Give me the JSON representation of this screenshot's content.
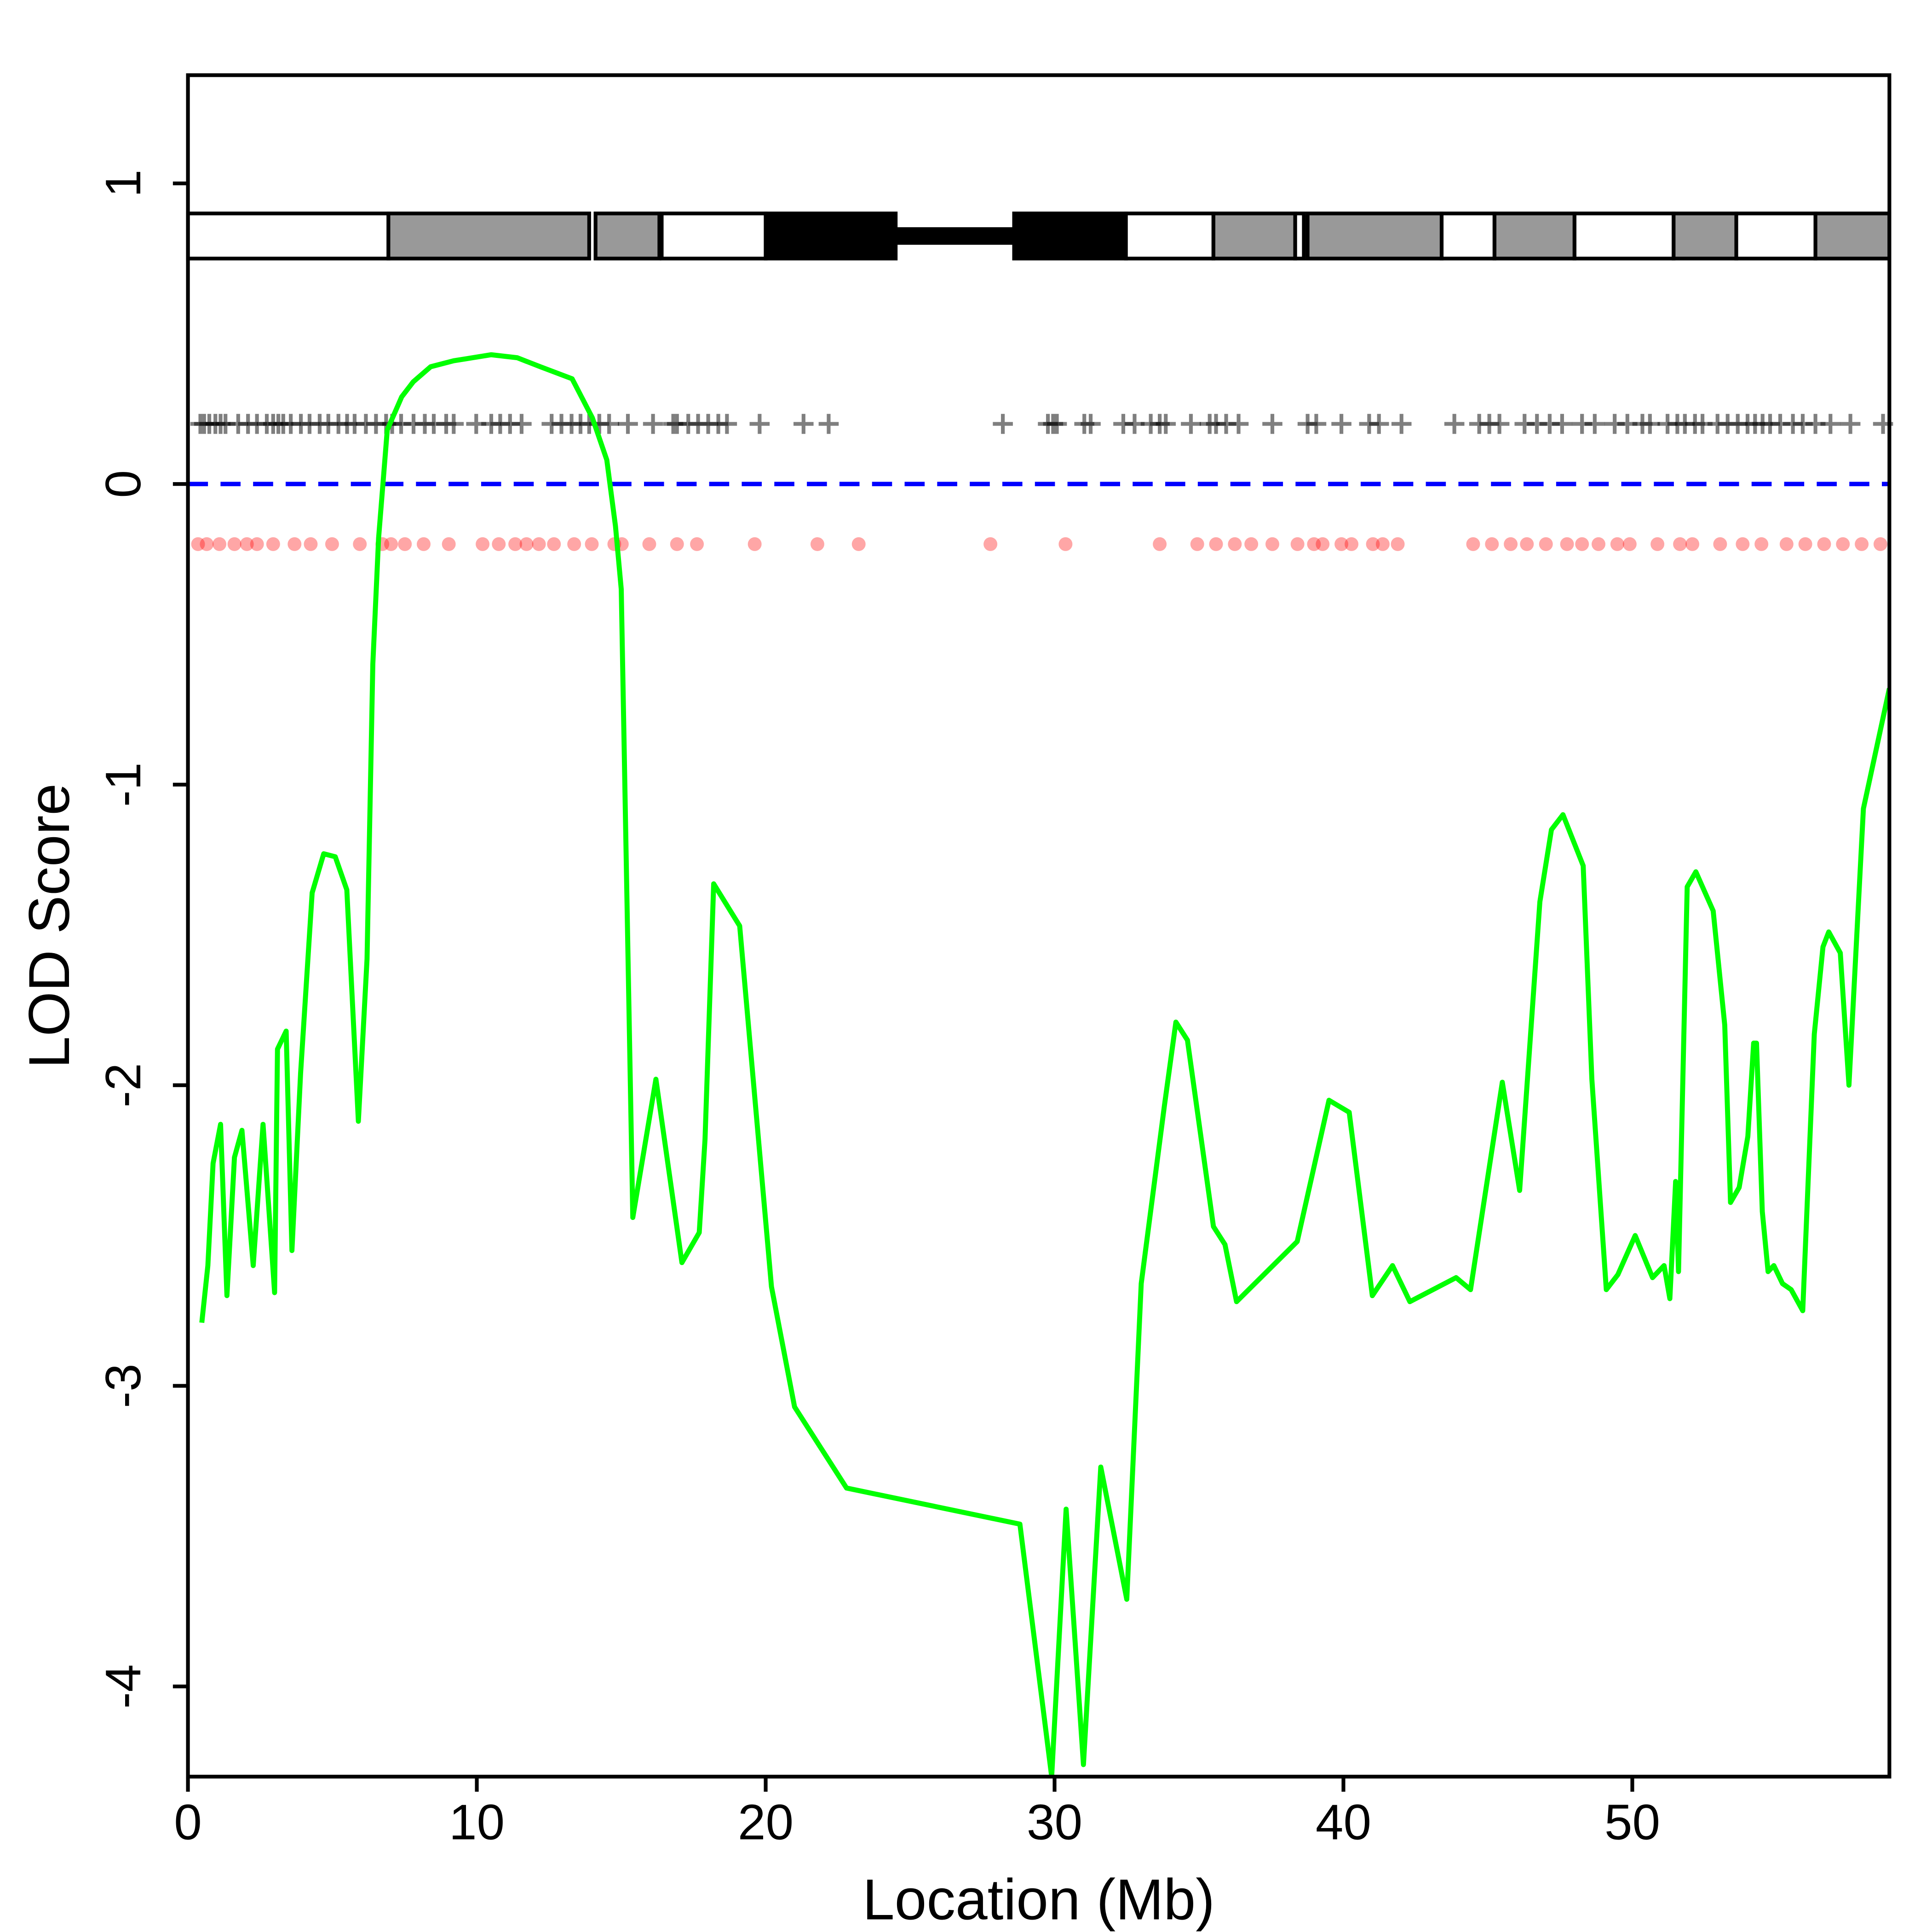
{
  "chart_data": {
    "type": "line",
    "xlabel": "Location (Mb)",
    "ylabel": "LOD Score",
    "xlim": [
      0,
      58.9
    ],
    "ylim": [
      -4.3,
      1.36
    ],
    "xticks": [
      0,
      10,
      20,
      30,
      40,
      50
    ],
    "yticks": [
      -4,
      -3,
      -2,
      -1,
      0,
      1
    ],
    "x": [
      0.48,
      0.69,
      0.87,
      1.13,
      1.35,
      1.61,
      1.87,
      2.26,
      2.6,
      3.0,
      3.1,
      3.4,
      3.6,
      3.9,
      4.3,
      4.7,
      5.1,
      5.5,
      5.9,
      6.2,
      6.4,
      6.6,
      6.9,
      7.4,
      7.8,
      8.4,
      9.2,
      10.5,
      11.4,
      12.2,
      13.3,
      14.0,
      14.5,
      14.8,
      15.0,
      15.4,
      16.2,
      17.1,
      17.7,
      17.9,
      18.2,
      19.1,
      20.2,
      21.0,
      22.8,
      28.8,
      29.9,
      30.4,
      31.0,
      31.6,
      32.5,
      33.0,
      33.8,
      34.2,
      34.6,
      35.5,
      35.9,
      36.3,
      38.4,
      39.5,
      40.2,
      41.0,
      41.7,
      42.3,
      43.9,
      44.4,
      45.5,
      46.1,
      46.8,
      47.2,
      47.6,
      48.3,
      48.6,
      49.1,
      49.5,
      50.1,
      50.7,
      51.1,
      51.3,
      51.5,
      51.6,
      51.9,
      52.2,
      52.8,
      53.2,
      53.4,
      53.7,
      54.0,
      54.2,
      54.3,
      54.5,
      54.7,
      54.9,
      55.2,
      55.5,
      55.9,
      56.3,
      56.6,
      56.8,
      57.2,
      57.5,
      58.0,
      58.9
    ],
    "series": [
      {
        "color": "#00ff00",
        "values": [
          -2.79,
          -2.6,
          -2.26,
          -2.13,
          -2.7,
          -2.24,
          -2.15,
          -2.6,
          -2.13,
          -2.69,
          -1.88,
          -1.82,
          -2.55,
          -1.96,
          -1.36,
          -1.23,
          -1.24,
          -1.35,
          -2.12,
          -1.58,
          -0.6,
          -0.18,
          0.18,
          0.29,
          0.34,
          0.39,
          0.41,
          0.43,
          0.42,
          0.39,
          0.35,
          0.22,
          0.08,
          -0.14,
          -0.35,
          -2.44,
          -1.98,
          -2.59,
          -2.49,
          -2.18,
          -1.33,
          -1.47,
          -2.67,
          -3.07,
          -3.34,
          -3.46,
          -4.3,
          -3.41,
          -4.26,
          -3.27,
          -3.71,
          -2.66,
          -2.07,
          -1.79,
          -1.85,
          -2.47,
          -2.53,
          -2.72,
          -2.52,
          -2.05,
          -2.09,
          -2.7,
          -2.6,
          -2.72,
          -2.64,
          -2.68,
          -1.99,
          -2.35,
          -1.39,
          -1.15,
          -1.1,
          -1.27,
          -1.98,
          -2.68,
          -2.63,
          -2.5,
          -2.64,
          -2.6,
          -2.71,
          -2.32,
          -2.62,
          -1.34,
          -1.29,
          -1.42,
          -1.8,
          -2.39,
          -2.34,
          -2.17,
          -1.86,
          -1.86,
          -2.42,
          -2.62,
          -2.6,
          -2.66,
          -2.68,
          -2.75,
          -1.83,
          -1.54,
          -1.49,
          -1.56,
          -2.0,
          -1.08,
          -0.68
        ]
      }
    ],
    "hline": {
      "value": 0,
      "color": "#0000ff"
    },
    "crosses": {
      "y": 0.2,
      "color": "#000000",
      "x": [
        0.43,
        0.56,
        0.74,
        0.95,
        1.13,
        1.3,
        1.74,
        2.08,
        2.39,
        2.73,
        2.95,
        3.13,
        3.3,
        3.56,
        3.91,
        4.21,
        4.56,
        4.86,
        5.21,
        5.51,
        5.77,
        6.16,
        6.51,
        6.86,
        7.07,
        7.38,
        7.81,
        8.2,
        8.51,
        8.94,
        9.2,
        9.98,
        10.5,
        10.81,
        11.15,
        11.55,
        12.59,
        12.93,
        13.28,
        13.59,
        13.89,
        14.24,
        14.58,
        15.23,
        16.1,
        16.8,
        16.93,
        17.32,
        17.66,
        18.01,
        18.36,
        18.66,
        19.79,
        21.31,
        22.18,
        28.21,
        29.77,
        29.95,
        30.08,
        31.03,
        31.25,
        32.38,
        32.77,
        33.33,
        33.64,
        33.85,
        34.72,
        35.37,
        35.59,
        35.94,
        36.37,
        37.54,
        38.76,
        39.06,
        39.93,
        40.89,
        41.23,
        42.01,
        43.84,
        44.7,
        45.05,
        45.4,
        46.27,
        46.7,
        47.14,
        47.57,
        48.26,
        48.7,
        49.39,
        49.83,
        50.35,
        50.61,
        51.22,
        51.56,
        51.82,
        52.17,
        52.43,
        52.95,
        53.3,
        53.65,
        53.99,
        54.25,
        54.51,
        54.77,
        55.12,
        55.56,
        55.9,
        56.34,
        56.86,
        57.55,
        58.68
      ]
    },
    "dots": {
      "y": -0.2,
      "color": "#ff0000",
      "x": [
        0.35,
        0.65,
        1.09,
        1.61,
        2.04,
        2.39,
        2.95,
        3.69,
        4.25,
        4.99,
        5.95,
        6.73,
        7.03,
        7.51,
        8.16,
        9.03,
        10.2,
        10.76,
        11.33,
        11.72,
        12.15,
        12.67,
        13.37,
        13.98,
        14.76,
        15.02,
        15.97,
        16.93,
        17.62,
        19.62,
        21.79,
        23.22,
        27.78,
        30.38,
        33.64,
        34.94,
        35.59,
        36.24,
        36.81,
        37.54,
        38.41,
        38.98,
        39.28,
        39.93,
        40.28,
        41.02,
        41.36,
        41.88,
        44.49,
        45.14,
        45.79,
        46.35,
        47.01,
        47.74,
        48.26,
        48.83,
        49.48,
        49.91,
        50.87,
        51.65,
        52.08,
        53.04,
        53.82,
        54.47,
        55.34,
        55.99,
        56.64,
        57.29,
        57.94,
        58.59
      ]
    },
    "ideogram": {
      "ylim": [
        0.75,
        0.9
      ],
      "stalk": [
        24.5,
        28.6
      ],
      "bands": [
        {
          "start": 0,
          "end": 6.94,
          "color": "#ffffff"
        },
        {
          "start": 6.94,
          "end": 13.89,
          "color": "#999999"
        },
        {
          "start": 14.11,
          "end": 16.32,
          "color": "#999999"
        },
        {
          "start": 16.4,
          "end": 20.0,
          "color": "#ffffff"
        },
        {
          "start": 20.0,
          "end": 24.5,
          "color": "#000000"
        },
        {
          "start": 28.6,
          "end": 32.47,
          "color": "#000000"
        },
        {
          "start": 32.47,
          "end": 35.5,
          "color": "#ffffff"
        },
        {
          "start": 35.5,
          "end": 38.33,
          "color": "#999999"
        },
        {
          "start": 38.33,
          "end": 38.63,
          "color": "#ffffff"
        },
        {
          "start": 38.76,
          "end": 43.4,
          "color": "#999999"
        },
        {
          "start": 43.4,
          "end": 45.23,
          "color": "#ffffff"
        },
        {
          "start": 45.23,
          "end": 48.0,
          "color": "#999999"
        },
        {
          "start": 48.0,
          "end": 51.43,
          "color": "#ffffff"
        },
        {
          "start": 51.43,
          "end": 53.6,
          "color": "#999999"
        },
        {
          "start": 53.6,
          "end": 56.34,
          "color": "#ffffff"
        },
        {
          "start": 56.34,
          "end": 58.9,
          "color": "#999999"
        }
      ]
    }
  }
}
